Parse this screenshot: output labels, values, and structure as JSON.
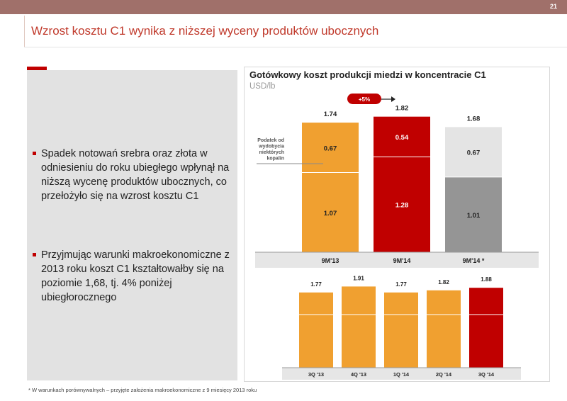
{
  "page_number": "21",
  "title": "Wzrost kosztu C1 wynika z niższej wyceny produktów ubocznych",
  "bullets": [
    "Spadek notowań srebra oraz złota w odniesieniu do roku ubiegłego wpłynął na niższą wycenę produktów ubocznych, co przełożyło się na wzrost kosztu C1",
    "Przyjmując warunki makroekonomiczne z 2013 roku koszt C1 kształtowałby się na poziomie 1,68, tj. 4% poniżej ubiegłorocznego"
  ],
  "chart_title": "Gotówkowy koszt produkcji miedzi w koncentracie C1",
  "chart_unit": "USD/lb",
  "footnote": "* W warunkach porównywalnych – przyjęte założenia makroekonomiczne z 9 miesięcy 2013 roku",
  "colors": {
    "orange": "#f0a030",
    "red": "#c00000",
    "dark_gray": "#959595",
    "light_gray": "#e4e4e4"
  },
  "chart_data": [
    {
      "type": "bar",
      "stacked": true,
      "categories": [
        "9M'13",
        "9M'14",
        "9M'14 *"
      ],
      "series": [
        {
          "values": [
            1.07,
            1.28,
            1.01
          ],
          "value_labels": [
            "1.07",
            "1.28",
            "1.01"
          ]
        },
        {
          "values": [
            0.67,
            0.54,
            0.67
          ],
          "value_labels": [
            "0.67",
            "0.54",
            "0.67"
          ]
        }
      ],
      "totals": [
        1.74,
        1.82,
        1.68
      ],
      "total_labels": [
        "1.74",
        "1.82",
        "1.68"
      ],
      "bar_colors": [
        [
          "#f0a030",
          "#f0a030"
        ],
        [
          "#c00000",
          "#c00000"
        ],
        [
          "#959595",
          "#e4e4e4"
        ]
      ],
      "annotation_change": "+5%",
      "annotation_tax": "Podatek od wydobycia niektórych kopalin",
      "ylim": [
        0,
        1.95
      ]
    },
    {
      "type": "bar",
      "categories": [
        "3Q '13",
        "4Q '13",
        "1Q '14",
        "2Q '14",
        "3Q '14"
      ],
      "values": [
        1.77,
        1.91,
        1.77,
        1.82,
        1.88
      ],
      "value_labels": [
        "1.77",
        "1.91",
        "1.77",
        "1.82",
        "1.88"
      ],
      "bar_colors": [
        "#f0a030",
        "#f0a030",
        "#f0a030",
        "#f0a030",
        "#c00000"
      ],
      "ylim": [
        0,
        2.0
      ]
    }
  ]
}
